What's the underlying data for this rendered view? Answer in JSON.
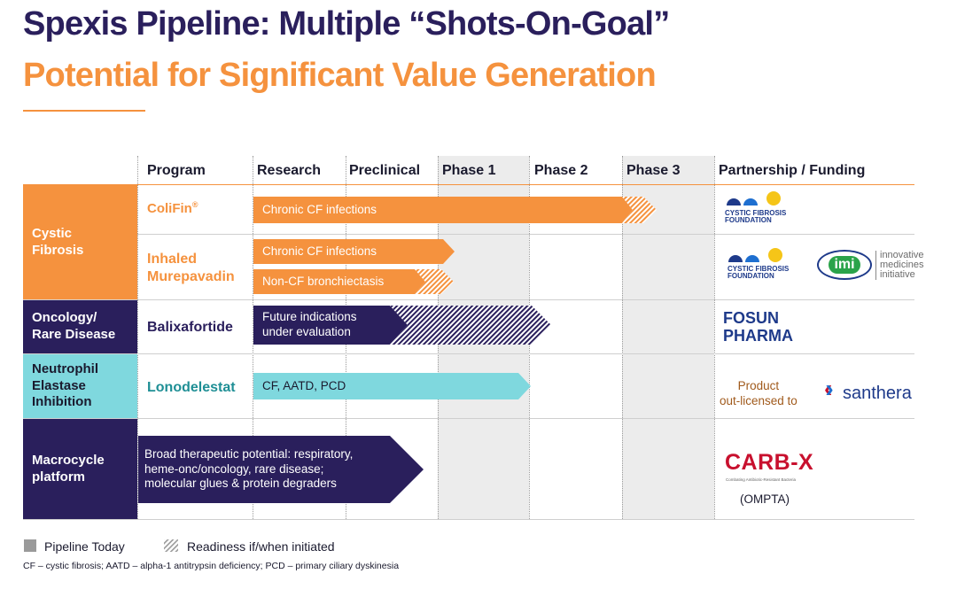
{
  "title": {
    "line1": "Spexis Pipeline: Multiple “Shots-On-Goal”",
    "line2": "Potential for Significant Value Generation"
  },
  "headers": {
    "program": "Program",
    "research": "Research",
    "preclinical": "Preclinical",
    "phase1": "Phase 1",
    "phase2": "Phase 2",
    "phase3": "Phase 3",
    "partnership": "Partnership / Funding"
  },
  "categories": {
    "cf": {
      "line1": "Cystic",
      "line2": "Fibrosis"
    },
    "onc": {
      "line1": "Oncology/",
      "line2": "Rare Disease"
    },
    "ne": {
      "line1": "Neutrophil",
      "line2": "Elastase",
      "line3": "Inhibition"
    },
    "macro": {
      "line1": "Macrocycle",
      "line2": "platform"
    }
  },
  "programs": {
    "colifin": "ColiFin",
    "colifin_mark": "®",
    "murepavadin1": "Inhaled",
    "murepavadin2": "Murepavadin",
    "balixafortide": "Balixafortide",
    "lonodelestat": "Lonodelestat"
  },
  "bars": {
    "colifin": "Chronic CF infections",
    "mur_cf": "Chronic CF infections",
    "mur_noncf": "Non-CF bronchiectasis",
    "balix1": "Future indications",
    "balix2": "under evaluation",
    "lono": "CF, AATD, PCD",
    "macro1": "Broad therapeutic potential: respiratory,",
    "macro2": "heme-onc/oncology, rare disease;",
    "macro3": "molecular glues & protein degraders"
  },
  "partners": {
    "cff1": "CYSTIC FIBROSIS",
    "cff2": "FOUNDATION",
    "imi_logo": "imi",
    "imi1": "innovative",
    "imi2": "medicines",
    "imi3": "initiative",
    "fosun1": "FOSUN",
    "fosun2": "PHARMA",
    "licensed1": "Product",
    "licensed2": "out-licensed to",
    "santhera": "santhera",
    "carbx": "CARB-X",
    "carbx_tag": "Combating Antibiotic-Resistant Bacteria",
    "ompta": "(OMPTA)"
  },
  "legend": {
    "today": "Pipeline Today",
    "readiness": "Readiness if/when initiated"
  },
  "footnote": "CF – cystic fibrosis; AATD – alpha-1 antitrypsin deficiency; PCD – primary ciliary dyskinesia",
  "colors": {
    "navy": "#2a1f5c",
    "orange": "#f5923e",
    "teal": "#7fd8de",
    "teal_text": "#1f8f95",
    "blue": "#1e3a8a",
    "carbx_red": "#c8102e"
  }
}
